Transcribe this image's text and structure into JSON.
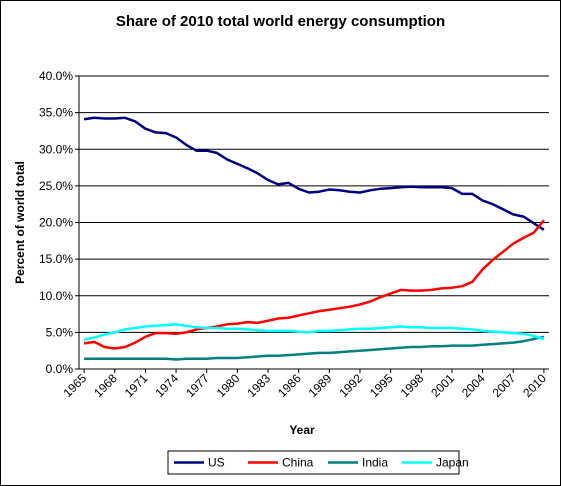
{
  "chart_data": {
    "type": "line",
    "title": "Share of 2010 total world energy consumption",
    "xlabel": "Year",
    "ylabel": "Percent of world total",
    "x": [
      1965,
      1966,
      1967,
      1968,
      1969,
      1970,
      1971,
      1972,
      1973,
      1974,
      1975,
      1976,
      1977,
      1978,
      1979,
      1980,
      1981,
      1982,
      1983,
      1984,
      1985,
      1986,
      1987,
      1988,
      1989,
      1990,
      1991,
      1992,
      1993,
      1994,
      1995,
      1996,
      1997,
      1998,
      1999,
      2000,
      2001,
      2002,
      2003,
      2004,
      2005,
      2006,
      2007,
      2008,
      2009,
      2010
    ],
    "xticks": [
      "1965",
      "1968",
      "1971",
      "1974",
      "1977",
      "1980",
      "1983",
      "1986",
      "1989",
      "1992",
      "1995",
      "1998",
      "2001",
      "2004",
      "2007",
      "2010"
    ],
    "yticks": [
      "0.0%",
      "5.0%",
      "10.0%",
      "15.0%",
      "20.0%",
      "25.0%",
      "30.0%",
      "35.0%",
      "40.0%"
    ],
    "ylim": [
      0,
      40
    ],
    "y_unit": "%",
    "grid": "horizontal",
    "legend_position": "bottom",
    "series": [
      {
        "name": "US",
        "color": "#000080",
        "values": [
          34.1,
          34.3,
          34.2,
          34.2,
          34.3,
          33.8,
          32.8,
          32.3,
          32.2,
          31.6,
          30.6,
          29.8,
          29.8,
          29.5,
          28.6,
          28.0,
          27.4,
          26.7,
          25.8,
          25.2,
          25.4,
          24.6,
          24.1,
          24.2,
          24.5,
          24.4,
          24.2,
          24.1,
          24.4,
          24.6,
          24.7,
          24.8,
          24.9,
          24.8,
          24.8,
          24.8,
          24.7,
          23.9,
          23.9,
          23.0,
          22.5,
          21.8,
          21.1,
          20.8,
          19.9,
          19.0
        ]
      },
      {
        "name": "China",
        "color": "#ff0000",
        "values": [
          3.5,
          3.7,
          3.0,
          2.8,
          3.0,
          3.6,
          4.4,
          4.9,
          4.9,
          4.8,
          5.0,
          5.4,
          5.6,
          5.8,
          6.1,
          6.2,
          6.4,
          6.3,
          6.6,
          6.9,
          7.0,
          7.3,
          7.6,
          7.9,
          8.1,
          8.3,
          8.5,
          8.8,
          9.2,
          9.8,
          10.3,
          10.8,
          10.7,
          10.7,
          10.8,
          11.0,
          11.1,
          11.3,
          11.9,
          13.6,
          14.9,
          16.0,
          17.1,
          17.9,
          18.6,
          20.3
        ]
      },
      {
        "name": "India",
        "color": "#008080",
        "values": [
          1.4,
          1.4,
          1.4,
          1.4,
          1.4,
          1.4,
          1.4,
          1.4,
          1.4,
          1.3,
          1.4,
          1.4,
          1.4,
          1.5,
          1.5,
          1.5,
          1.6,
          1.7,
          1.8,
          1.8,
          1.9,
          2.0,
          2.1,
          2.2,
          2.2,
          2.3,
          2.4,
          2.5,
          2.6,
          2.7,
          2.8,
          2.9,
          3.0,
          3.0,
          3.1,
          3.1,
          3.2,
          3.2,
          3.2,
          3.3,
          3.4,
          3.5,
          3.6,
          3.8,
          4.1,
          4.4
        ]
      },
      {
        "name": "Japan",
        "color": "#00ffff",
        "values": [
          4.0,
          4.3,
          4.7,
          5.0,
          5.4,
          5.6,
          5.8,
          5.9,
          6.0,
          6.1,
          5.9,
          5.7,
          5.6,
          5.6,
          5.5,
          5.5,
          5.4,
          5.3,
          5.2,
          5.2,
          5.2,
          5.1,
          5.0,
          5.2,
          5.2,
          5.3,
          5.4,
          5.5,
          5.5,
          5.6,
          5.7,
          5.8,
          5.7,
          5.7,
          5.6,
          5.6,
          5.6,
          5.5,
          5.4,
          5.2,
          5.1,
          5.0,
          4.9,
          4.8,
          4.5,
          4.1
        ]
      }
    ]
  }
}
